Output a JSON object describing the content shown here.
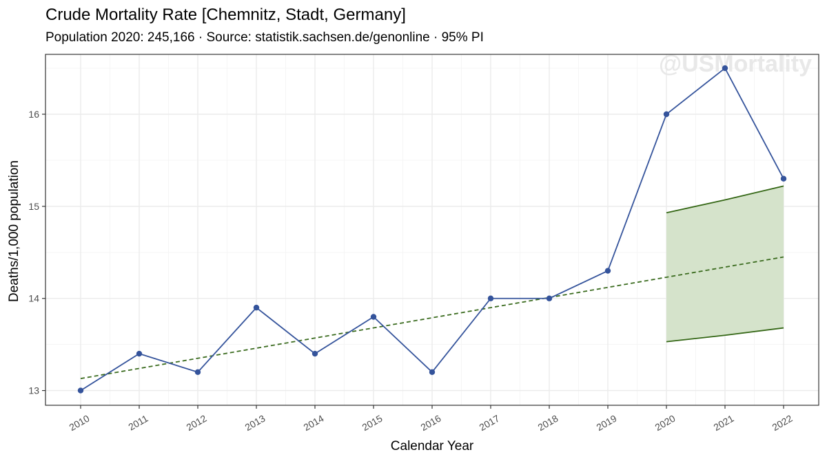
{
  "chart_data": {
    "type": "line",
    "title": "Crude Mortality Rate [Chemnitz, Stadt, Germany]",
    "subtitle": "Population 2020: 245,166 · Source: statistik.sachsen.de/genonline · 95% PI",
    "xlabel": "Calendar Year",
    "ylabel": "Deaths/1,000 population",
    "watermark": "@USMortality",
    "x": [
      "2010",
      "2011",
      "2012",
      "2013",
      "2014",
      "2015",
      "2016",
      "2017",
      "2018",
      "2019",
      "2020",
      "2021",
      "2022"
    ],
    "yticks": [
      13,
      14,
      15,
      16
    ],
    "ylim": [
      12.84,
      16.65
    ],
    "grid": true,
    "series": [
      {
        "values": [
          13.0,
          13.4,
          13.2,
          13.9,
          13.4,
          13.8,
          13.2,
          14.0,
          14.0,
          14.3,
          16.0,
          16.5,
          15.3
        ]
      }
    ],
    "trend": {
      "x": [
        "2010",
        "2022"
      ],
      "values": [
        13.13,
        14.45
      ]
    },
    "prediction_interval": {
      "x": [
        "2020",
        "2021",
        "2022"
      ],
      "upper": [
        14.93,
        15.07,
        15.22
      ],
      "lower": [
        13.53,
        13.6,
        13.68
      ]
    },
    "colors": {
      "line": "#34539b",
      "trend": "#3a6b1e",
      "band_fill": "#d5e3cb",
      "band_line": "#336614",
      "grid_major": "#ebebeb",
      "grid_minor": "#f5f5f5"
    }
  }
}
